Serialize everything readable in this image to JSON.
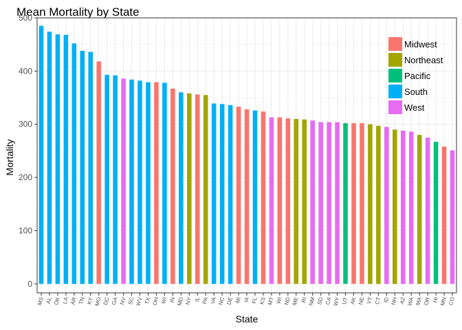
{
  "chart_data": {
    "type": "bar",
    "title": "Mean Mortality by State",
    "xlabel": "State",
    "ylabel": "Mortality",
    "ylim": [
      -17,
      500
    ],
    "yticks": [
      0,
      100,
      200,
      300,
      400,
      500
    ],
    "grid": true,
    "legend_position": "top-right",
    "regions": [
      {
        "name": "Midwest",
        "color": "#F8766D"
      },
      {
        "name": "Northeast",
        "color": "#A3A500"
      },
      {
        "name": "Pacific",
        "color": "#00BF7D"
      },
      {
        "name": "South",
        "color": "#00B0F6"
      },
      {
        "name": "West",
        "color": "#E76BF3"
      }
    ],
    "categories": [
      "MS",
      "AL",
      "OK",
      "LA",
      "AR",
      "TN",
      "KY",
      "MO",
      "DC",
      "GA",
      "NV",
      "SC",
      "WV",
      "TX",
      "OH",
      "WI",
      "IN",
      "MD",
      "NY",
      "IL",
      "PA",
      "VA",
      "NC",
      "DE",
      "MI",
      "IA",
      "FL",
      "KS",
      "MT",
      "WI",
      "ND",
      "ME",
      "RI",
      "NM",
      "SD",
      "CA",
      "WY",
      "UT",
      "AK",
      "NE",
      "VT",
      "CT",
      "ID",
      "NH",
      "AZ",
      "WA",
      "MA",
      "OR",
      "HI",
      "MN",
      "CO"
    ],
    "values": [
      485,
      474,
      469,
      468,
      452,
      438,
      436,
      418,
      393,
      392,
      386,
      384,
      382,
      379,
      379,
      378,
      367,
      360,
      358,
      356,
      355,
      339,
      338,
      336,
      333,
      328,
      326,
      324,
      313,
      313,
      311,
      310,
      309,
      307,
      304,
      304,
      304,
      302,
      302,
      302,
      300,
      297,
      295,
      290,
      288,
      286,
      280,
      275,
      267,
      258,
      251
    ],
    "region_of_bar": [
      "South",
      "South",
      "South",
      "South",
      "South",
      "South",
      "South",
      "Midwest",
      "South",
      "South",
      "West",
      "South",
      "South",
      "South",
      "Midwest",
      "South",
      "Midwest",
      "South",
      "Northeast",
      "Midwest",
      "Northeast",
      "South",
      "South",
      "South",
      "Midwest",
      "Midwest",
      "South",
      "Midwest",
      "West",
      "Midwest",
      "Midwest",
      "Northeast",
      "Northeast",
      "West",
      "West",
      "West",
      "West",
      "Pacific",
      "Midwest",
      "Midwest",
      "Northeast",
      "Northeast",
      "West",
      "Northeast",
      "West",
      "West",
      "Northeast",
      "West",
      "Pacific",
      "Midwest",
      "West"
    ]
  }
}
